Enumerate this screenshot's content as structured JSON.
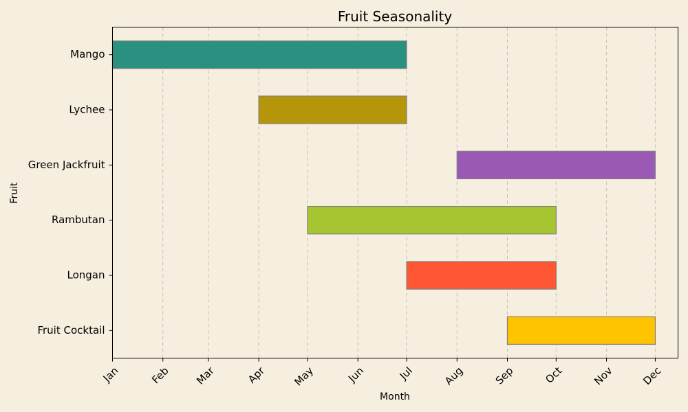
{
  "chart_data": {
    "type": "gantt",
    "title": "Fruit Seasonality",
    "xlabel": "Month",
    "ylabel": "Fruit",
    "months": [
      "Jan",
      "Feb",
      "Mar",
      "Apr",
      "May",
      "Jun",
      "Jul",
      "Aug",
      "Sep",
      "Oct",
      "Nov",
      "Dec"
    ],
    "xlim": [
      "2023-01-01",
      "2023-12-15"
    ],
    "x_ticks": [
      "2023-01-01",
      "2023-02-01",
      "2023-03-01",
      "2023-04-01",
      "2023-05-01",
      "2023-06-01",
      "2023-07-01",
      "2023-08-01",
      "2023-09-01",
      "2023-10-01",
      "2023-11-01",
      "2023-12-01"
    ],
    "grid": "x-dashed",
    "tasks": [
      {
        "name": "Mango",
        "start": "2023-01-01",
        "end": "2023-07-01",
        "color": "#2a9080"
      },
      {
        "name": "Lychee",
        "start": "2023-04-01",
        "end": "2023-07-01",
        "color": "#b5960b"
      },
      {
        "name": "Green Jackfruit",
        "start": "2023-08-01",
        "end": "2023-12-01",
        "color": "#9b59b6"
      },
      {
        "name": "Rambutan",
        "start": "2023-05-01",
        "end": "2023-10-01",
        "color": "#a6c530"
      },
      {
        "name": "Longan",
        "start": "2023-07-01",
        "end": "2023-10-01",
        "color": "#ff5733"
      },
      {
        "name": "Fruit Cocktail",
        "start": "2023-09-01",
        "end": "2023-12-01",
        "color": "#ffc300"
      }
    ]
  }
}
